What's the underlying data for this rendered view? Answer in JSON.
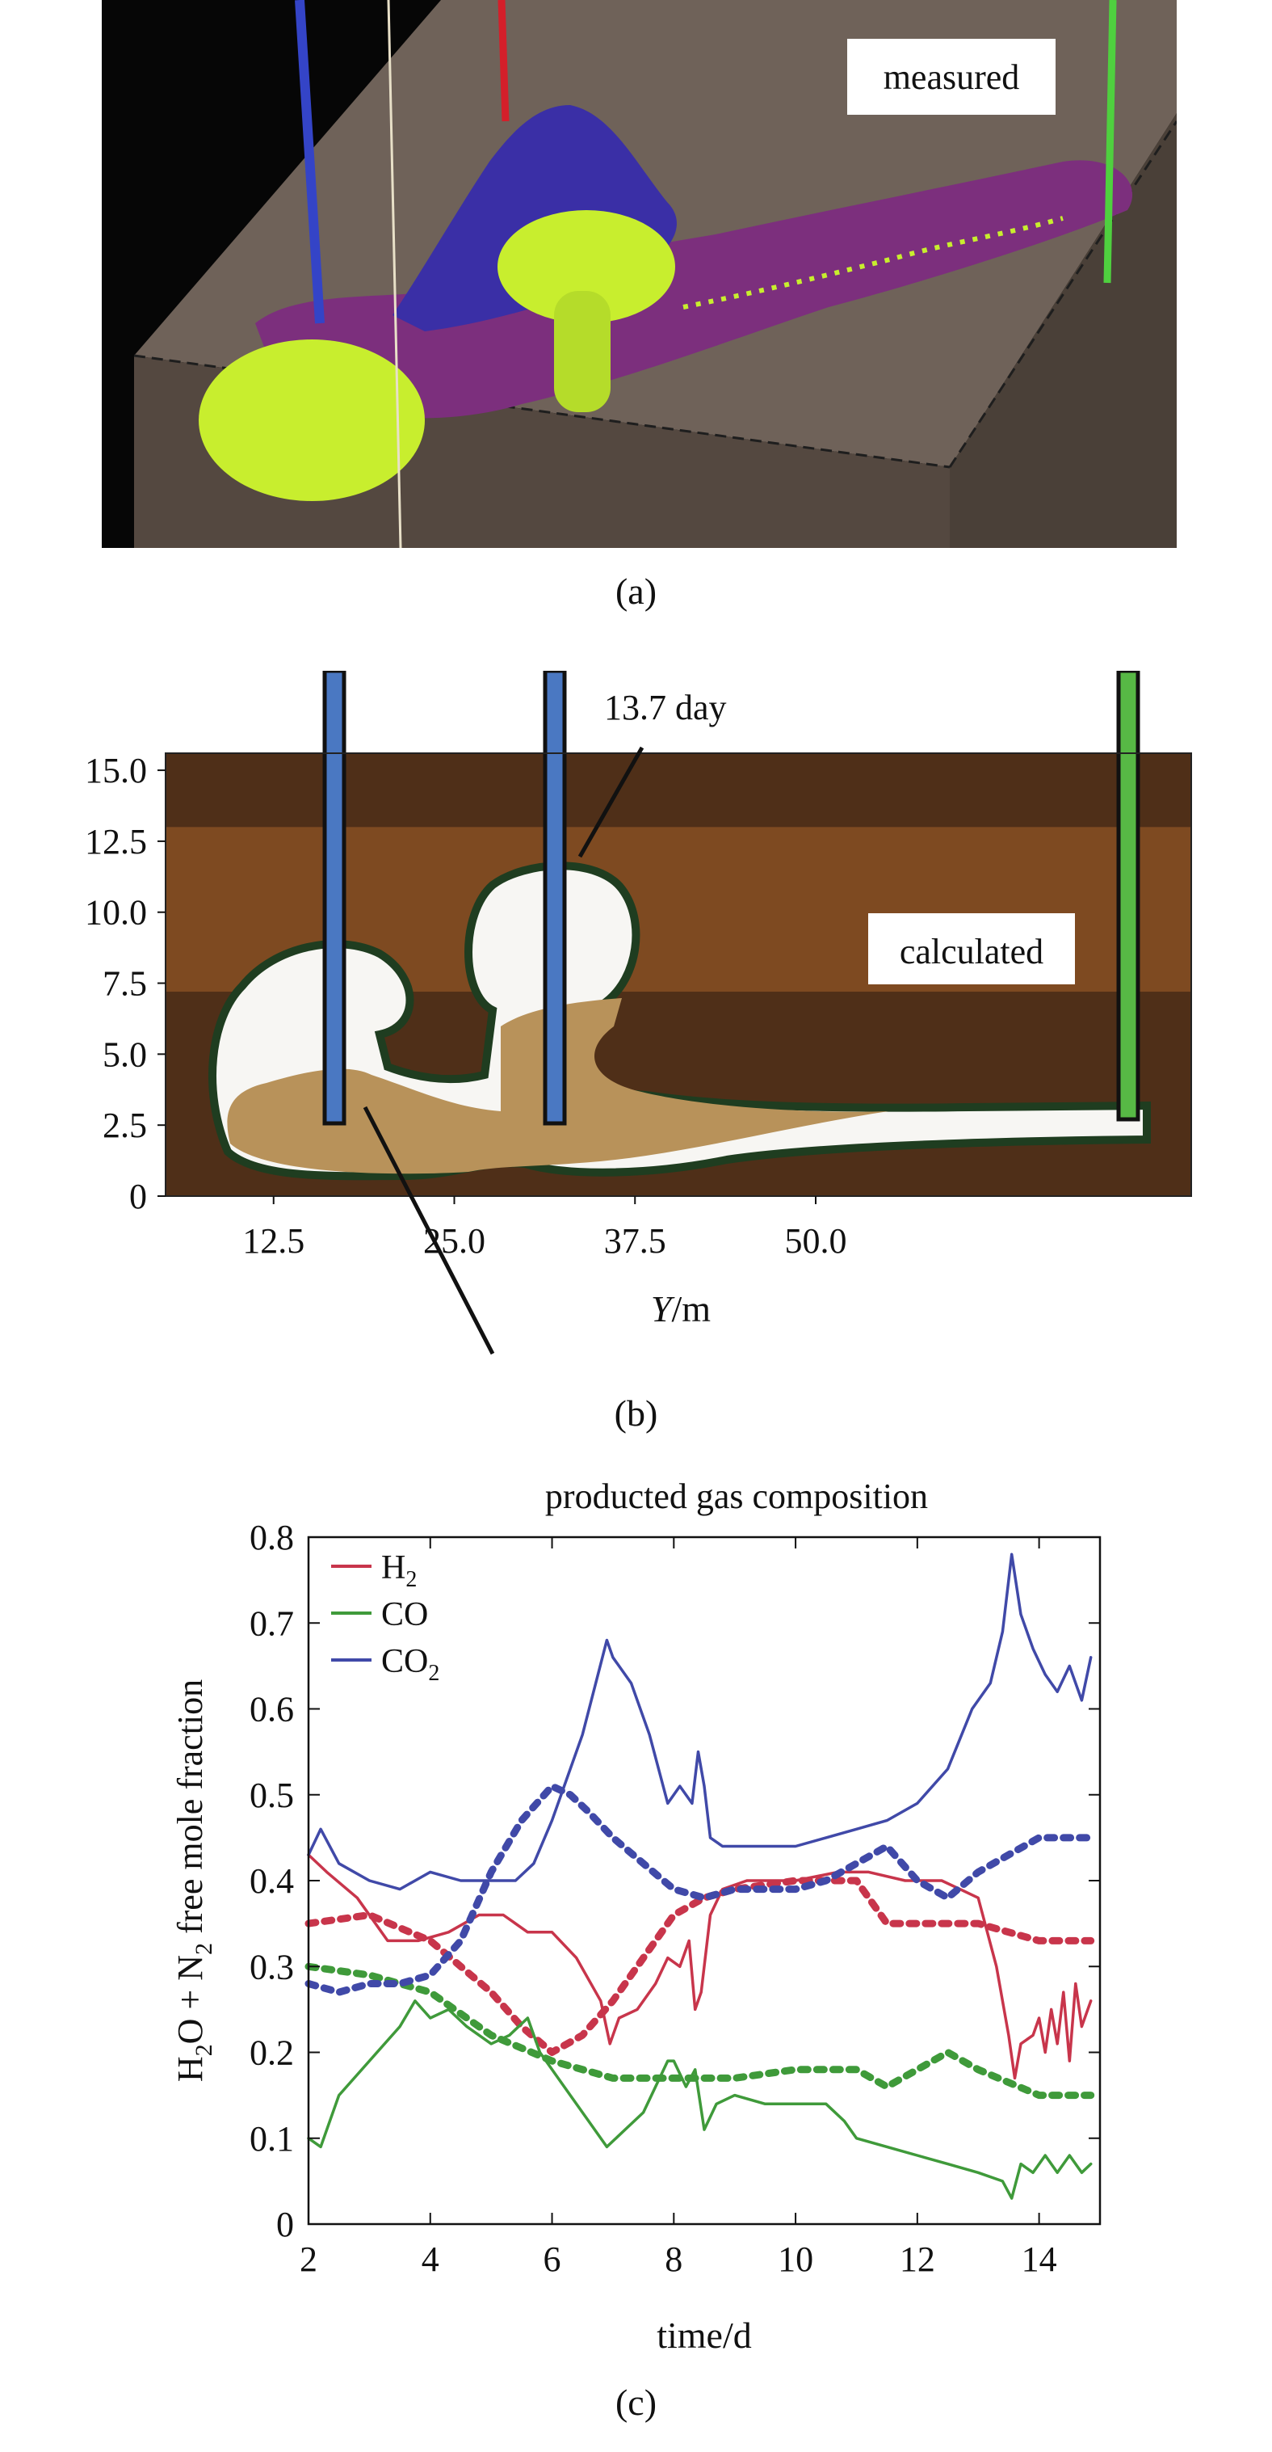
{
  "panel_a": {
    "caption": "(a)",
    "label": "measured",
    "colors": {
      "background": "#060606",
      "block": "#675c54",
      "purple": "#7c2f7d",
      "blue": "#3a2fa6",
      "yellow": "#c8ee2e"
    }
  },
  "panel_b": {
    "caption": "(b)",
    "label": "calculated",
    "annotation": "13.7 day",
    "xlabel_italic": "Y",
    "xlabel_rest": "/m",
    "xticks": [
      "12.5",
      "25.0",
      "37.5",
      "50.0"
    ],
    "xtick_values": [
      12.5,
      25.0,
      37.5,
      50.0
    ],
    "yticks": [
      "0",
      "2.5",
      "5.0",
      "7.5",
      "10.0",
      "12.5",
      "15.0"
    ],
    "ytick_values": [
      0,
      2.5,
      5.0,
      7.5,
      10.0,
      12.5,
      15.0
    ],
    "colors": {
      "dark_brown": "#4f2f18",
      "mid_brown": "#7e4a21",
      "cavity_fill": "#b8925a",
      "void": "#f7f6f3",
      "outline": "#1f3d20",
      "well_blue": "#4a78c2",
      "well_green": "#57b845"
    }
  },
  "chart_data": {
    "type": "line",
    "title": "producted gas composition",
    "xlabel": "time/d",
    "ylabel_parts": [
      "H",
      "2",
      "O + N",
      "2",
      " free mole fraction"
    ],
    "xlim": [
      2,
      15
    ],
    "ylim": [
      0,
      0.8
    ],
    "xticks": [
      "2",
      "4",
      "6",
      "8",
      "10",
      "12",
      "14"
    ],
    "xtick_values": [
      2,
      4,
      6,
      8,
      10,
      12,
      14
    ],
    "yticks": [
      "0",
      "0.1",
      "0.2",
      "0.3",
      "0.4",
      "0.5",
      "0.6",
      "0.7",
      "0.8"
    ],
    "ytick_values": [
      0,
      0.1,
      0.2,
      0.3,
      0.4,
      0.5,
      0.6,
      0.7,
      0.8
    ],
    "caption": "(c)",
    "legend_position": "top-left",
    "legend": [
      {
        "base": "H",
        "sub": "2",
        "color": "#c8354b"
      },
      {
        "base": "CO",
        "sub": "",
        "color": "#3f9a3a"
      },
      {
        "base": "CO",
        "sub": "2",
        "color": "#4049a8"
      }
    ],
    "series": [
      {
        "name": "H2",
        "style": "solid",
        "color": "#c8354b",
        "x": [
          2.0,
          2.3,
          2.8,
          3.3,
          3.8,
          4.3,
          4.8,
          5.2,
          5.6,
          6.0,
          6.4,
          6.8,
          6.95,
          7.1,
          7.4,
          7.7,
          7.9,
          8.1,
          8.25,
          8.35,
          8.45,
          8.6,
          8.8,
          9.2,
          10.0,
          10.7,
          11.2,
          11.8,
          12.4,
          12.7,
          13.0,
          13.3,
          13.5,
          13.6,
          13.7,
          13.9,
          14.0,
          14.1,
          14.2,
          14.3,
          14.4,
          14.5,
          14.6,
          14.7,
          14.85
        ],
        "y": [
          0.43,
          0.41,
          0.38,
          0.33,
          0.33,
          0.34,
          0.36,
          0.36,
          0.34,
          0.34,
          0.31,
          0.26,
          0.21,
          0.24,
          0.25,
          0.28,
          0.31,
          0.3,
          0.33,
          0.25,
          0.27,
          0.36,
          0.39,
          0.4,
          0.4,
          0.41,
          0.41,
          0.4,
          0.4,
          0.39,
          0.38,
          0.3,
          0.22,
          0.17,
          0.21,
          0.22,
          0.24,
          0.2,
          0.25,
          0.21,
          0.27,
          0.19,
          0.28,
          0.23,
          0.26
        ]
      },
      {
        "name": "H2",
        "style": "dashed",
        "color": "#c8354b",
        "x": [
          2.0,
          3.0,
          4.0,
          5.0,
          5.5,
          6.0,
          6.5,
          7.0,
          7.5,
          8.0,
          8.5,
          9.0,
          10.0,
          11.0,
          11.5,
          12.0,
          13.0,
          14.0,
          14.85
        ],
        "y": [
          0.35,
          0.36,
          0.33,
          0.27,
          0.23,
          0.2,
          0.22,
          0.26,
          0.31,
          0.36,
          0.38,
          0.39,
          0.4,
          0.4,
          0.35,
          0.35,
          0.35,
          0.33,
          0.33
        ]
      },
      {
        "name": "CO",
        "style": "solid",
        "color": "#3f9a3a",
        "x": [
          2.0,
          2.2,
          2.5,
          3.0,
          3.5,
          3.75,
          4.0,
          4.3,
          4.6,
          5.0,
          5.3,
          5.6,
          5.8,
          6.2,
          6.6,
          6.9,
          7.2,
          7.5,
          7.9,
          8.0,
          8.2,
          8.35,
          8.5,
          8.7,
          9.0,
          9.5,
          10.0,
          10.5,
          10.8,
          11.0,
          11.5,
          12.0,
          12.5,
          13.0,
          13.4,
          13.55,
          13.7,
          13.9,
          14.1,
          14.3,
          14.5,
          14.7,
          14.85
        ],
        "y": [
          0.1,
          0.09,
          0.15,
          0.19,
          0.23,
          0.26,
          0.24,
          0.25,
          0.23,
          0.21,
          0.22,
          0.24,
          0.2,
          0.16,
          0.12,
          0.09,
          0.11,
          0.13,
          0.19,
          0.19,
          0.16,
          0.18,
          0.11,
          0.14,
          0.15,
          0.14,
          0.14,
          0.14,
          0.12,
          0.1,
          0.09,
          0.08,
          0.07,
          0.06,
          0.05,
          0.03,
          0.07,
          0.06,
          0.08,
          0.06,
          0.08,
          0.06,
          0.07
        ]
      },
      {
        "name": "CO",
        "style": "dashed",
        "color": "#3f9a3a",
        "x": [
          2.0,
          3.0,
          4.0,
          5.0,
          6.0,
          7.0,
          8.0,
          9.0,
          10.0,
          11.0,
          11.5,
          12.0,
          12.5,
          13.0,
          14.0,
          14.85
        ],
        "y": [
          0.3,
          0.29,
          0.27,
          0.22,
          0.19,
          0.17,
          0.17,
          0.17,
          0.18,
          0.18,
          0.16,
          0.18,
          0.2,
          0.18,
          0.15,
          0.15
        ]
      },
      {
        "name": "CO2",
        "style": "solid",
        "color": "#4049a8",
        "x": [
          2.0,
          2.2,
          2.5,
          3.0,
          3.5,
          4.0,
          4.5,
          5.0,
          5.4,
          5.7,
          6.0,
          6.5,
          6.9,
          7.0,
          7.3,
          7.6,
          7.9,
          8.1,
          8.3,
          8.4,
          8.5,
          8.6,
          8.8,
          9.5,
          10.0,
          10.5,
          11.0,
          11.5,
          12.0,
          12.5,
          12.9,
          13.2,
          13.4,
          13.55,
          13.7,
          13.9,
          14.1,
          14.3,
          14.5,
          14.7,
          14.85
        ],
        "y": [
          0.43,
          0.46,
          0.42,
          0.4,
          0.39,
          0.41,
          0.4,
          0.4,
          0.4,
          0.42,
          0.47,
          0.57,
          0.68,
          0.66,
          0.63,
          0.57,
          0.49,
          0.51,
          0.49,
          0.55,
          0.51,
          0.45,
          0.44,
          0.44,
          0.44,
          0.45,
          0.46,
          0.47,
          0.49,
          0.53,
          0.6,
          0.63,
          0.69,
          0.78,
          0.71,
          0.67,
          0.64,
          0.62,
          0.65,
          0.61,
          0.66
        ]
      },
      {
        "name": "CO2",
        "style": "dashed",
        "color": "#4049a8",
        "x": [
          2.0,
          2.5,
          3.0,
          3.5,
          4.0,
          4.5,
          5.0,
          5.5,
          6.0,
          6.3,
          6.6,
          7.0,
          7.5,
          8.0,
          8.5,
          9.0,
          10.0,
          10.5,
          11.0,
          11.5,
          12.0,
          12.5,
          13.0,
          13.5,
          14.0,
          14.85
        ],
        "y": [
          0.28,
          0.27,
          0.28,
          0.28,
          0.29,
          0.33,
          0.41,
          0.47,
          0.51,
          0.5,
          0.48,
          0.45,
          0.42,
          0.39,
          0.38,
          0.39,
          0.39,
          0.4,
          0.42,
          0.44,
          0.4,
          0.38,
          0.41,
          0.43,
          0.45,
          0.45
        ]
      }
    ]
  }
}
